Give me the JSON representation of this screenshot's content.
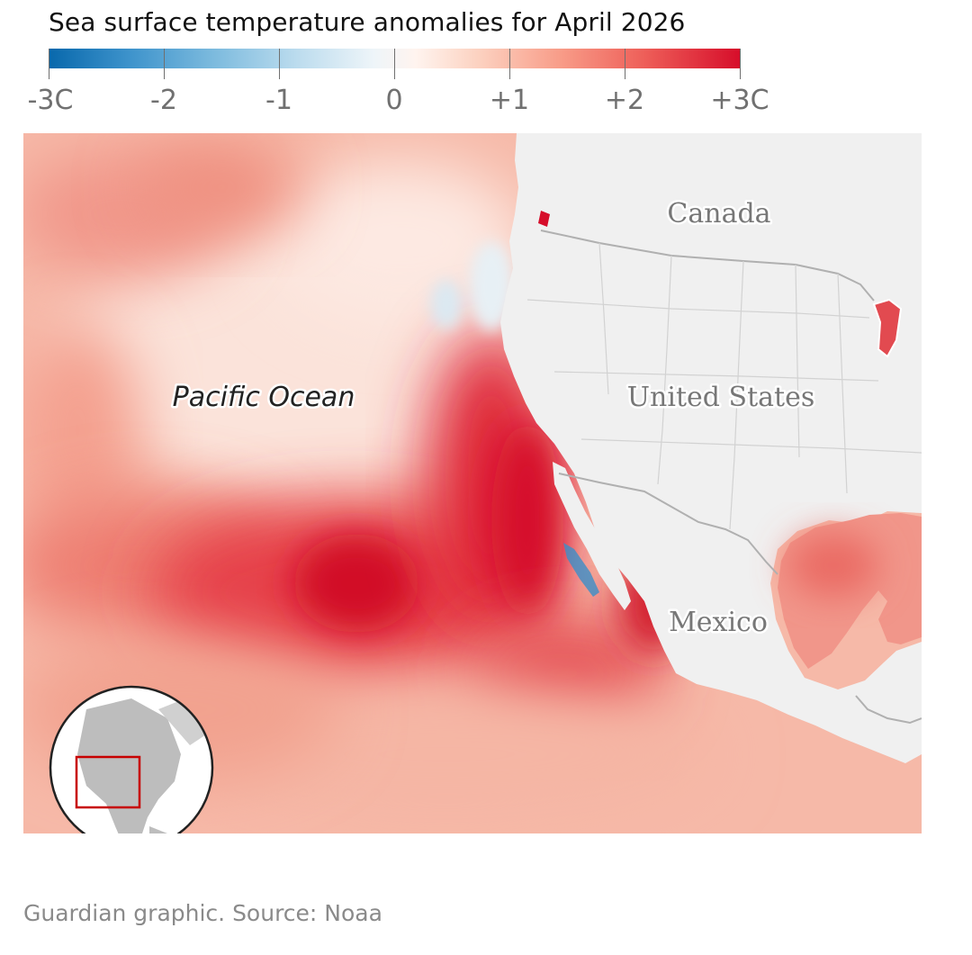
{
  "title": "Sea surface temperature anomalies for April 2026",
  "legend": {
    "ticks": [
      "-3C",
      "-2",
      "-1",
      "0",
      "+1",
      "+2",
      "+3C"
    ],
    "colors": {
      "cold": "#0868ac",
      "neutral": "#f4f7f8",
      "warm": "#d60d2a"
    }
  },
  "map": {
    "labels": {
      "canada": "Canada",
      "usa": "United States",
      "mexico": "Mexico",
      "ocean": "Pacific Ocean"
    },
    "land_color": "#f0f0f0",
    "border_color": "#b0b0b0",
    "locator": {
      "icon": "globe-locator-icon",
      "highlight_color": "#c70000"
    }
  },
  "source": "Guardian graphic. Source: Noaa"
}
